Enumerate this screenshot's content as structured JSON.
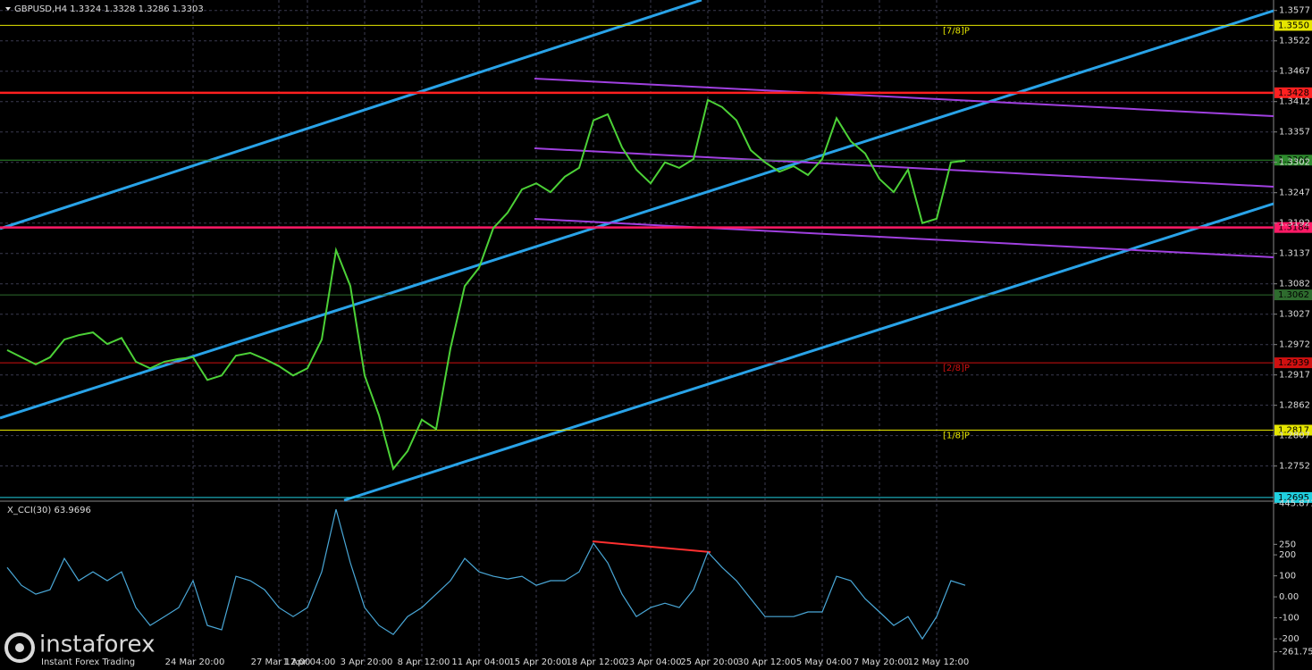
{
  "chart_data": [
    {
      "type": "line",
      "title": "GBPUSD,H4  1.3324 1.3328 1.3286 1.3303",
      "categories": [
        null,
        null,
        null,
        null,
        null,
        null,
        null,
        null,
        null,
        null,
        null,
        null,
        null,
        "24 Mar 20:00",
        null,
        null,
        null,
        null,
        null,
        "27 Mar 12:00",
        null,
        "1 Apr 04:00",
        null,
        null,
        null,
        "3 Apr 20:00",
        null,
        null,
        null,
        "8 Apr 12:00",
        null,
        null,
        null,
        "11 Apr 04:00",
        null,
        null,
        null,
        "15 Apr 20:00",
        null,
        null,
        null,
        "18 Apr 12:00",
        null,
        null,
        null,
        "23 Apr 04:00",
        null,
        null,
        null,
        "25 Apr 20:00",
        null,
        null,
        null,
        "30 Apr 12:00",
        null,
        null,
        null,
        "5 May 04:00",
        null,
        null,
        null,
        "7 May 20:00",
        null,
        null,
        null,
        "12 May 12:00",
        null,
        null
      ],
      "series": [
        {
          "name": "GBPUSD",
          "color": "#4cd137",
          "values": [
            1.2962,
            1.2949,
            1.2936,
            1.2949,
            1.2981,
            1.2989,
            1.2994,
            1.2973,
            1.2984,
            1.2941,
            1.2929,
            1.2941,
            1.2946,
            1.2949,
            1.2908,
            1.2916,
            1.2952,
            1.2957,
            1.2946,
            1.2933,
            1.2916,
            1.2929,
            1.2981,
            1.3143,
            1.3078,
            1.2916,
            1.2844,
            1.2747,
            1.2779,
            1.2836,
            1.2819,
            1.2965,
            1.3078,
            1.3111,
            1.3183,
            1.3211,
            1.3253,
            1.3264,
            1.3248,
            1.3276,
            1.3292,
            1.3378,
            1.3389,
            1.3329,
            1.3289,
            1.3264,
            1.3302,
            1.3292,
            1.3308,
            1.3415,
            1.3402,
            1.3378,
            1.3324,
            1.3302,
            1.3285,
            1.3295,
            1.3279,
            1.3308,
            1.3382,
            1.334,
            1.3318,
            1.3272,
            1.3248,
            1.3289,
            1.3192,
            1.32,
            1.3302,
            1.3305
          ]
        }
      ],
      "ylim": [
        1.269,
        1.3596
      ],
      "yticks": [
        1.3577,
        1.3522,
        1.3467,
        1.3412,
        1.3357,
        1.3302,
        1.3247,
        1.3192,
        1.3137,
        1.3082,
        1.3027,
        1.2972,
        1.2917,
        1.2862,
        1.2807,
        1.2752
      ],
      "grid": true,
      "levels": [
        {
          "value": 1.355,
          "label": "1.3550",
          "color": "#e6e600",
          "tag": "[7/8]P"
        },
        {
          "value": 1.3428,
          "label": "1.3428",
          "color": "#ff2020"
        },
        {
          "value": 1.3306,
          "label": "1.3306",
          "color": "#2e8b2e"
        },
        {
          "value": 1.3184,
          "label": "1.3184",
          "color": "#ff1a66"
        },
        {
          "value": 1.3062,
          "label": "1.3062",
          "color": "#2e6b2e"
        },
        {
          "value": 1.2939,
          "label": "1.2939",
          "color": "#d01010",
          "tag": "[2/8]P"
        },
        {
          "value": 1.2817,
          "label": "1.2817",
          "color": "#e6e600",
          "tag": "[1/8]P"
        },
        {
          "value": 1.2695,
          "label": "1.2695",
          "color": "#20d0e0"
        }
      ]
    },
    {
      "type": "line",
      "title": "X_CCI(30) 63.9696",
      "series": [
        {
          "name": "CCI",
          "color": "#4aa8d8",
          "values": [
            140,
            55,
            13,
            34,
            183,
            77,
            119,
            77,
            119,
            -51,
            -136,
            -94,
            -51,
            77,
            -136,
            -157,
            98,
            77,
            34,
            -51,
            -94,
            -51,
            119,
            417,
            162,
            -51,
            -136,
            -179,
            -94,
            -51,
            13,
            77,
            183,
            119,
            98,
            85,
            98,
            55,
            77,
            77,
            119,
            255,
            162,
            13,
            -94,
            -51,
            -30,
            -51,
            34,
            213,
            140,
            77,
            -9,
            -94,
            -94,
            -94,
            -72,
            -72,
            98,
            77,
            -9,
            -72,
            -136,
            -94,
            -200,
            -94,
            77,
            55
          ]
        }
      ],
      "ylim": [
        -327,
        447
      ],
      "yticks": [
        445.8715,
        250,
        200,
        100,
        {
          "value": 0,
          "label": "0.00"
        },
        -100,
        -200,
        -261.757
      ]
    }
  ],
  "watermark": {
    "brand": "instaforex",
    "slogan": "Instant Forex Trading"
  }
}
